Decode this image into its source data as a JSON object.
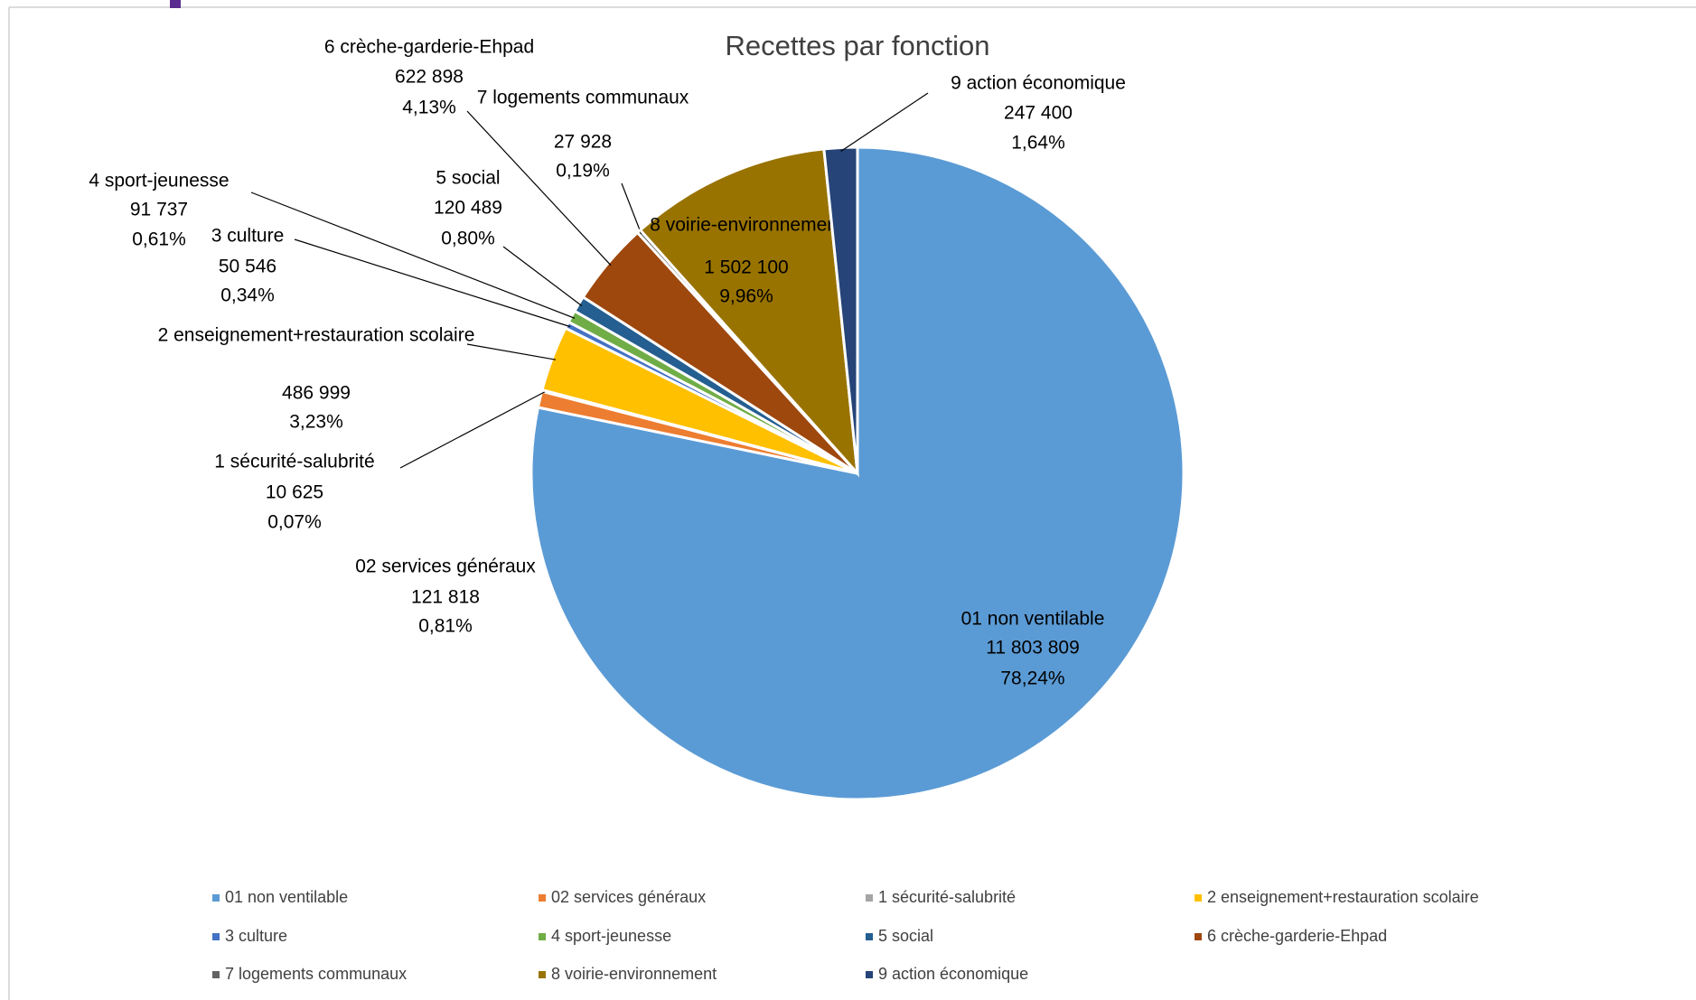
{
  "chart_data": {
    "type": "pie",
    "title": "Recettes par fonction",
    "categories": [
      "01 non ventilable",
      "02 services généraux",
      "1 sécurité-salubrité",
      "2 enseignement+restauration scolaire",
      "3 culture",
      "4 sport-jeunesse",
      "5 social",
      "6 crèche-garderie-Ehpad",
      "7 logements communaux",
      "8 voirie-environnement",
      "9 action économique"
    ],
    "values": [
      11803809,
      121818,
      10625,
      486999,
      50546,
      91737,
      120489,
      622898,
      27928,
      1502100,
      247400
    ],
    "value_labels": [
      "11 803 809",
      "121 818",
      "10 625",
      "486 999",
      "50 546",
      "91 737",
      "120 489",
      "622 898",
      "27 928",
      "1 502 100",
      "247 400"
    ],
    "percentages": [
      78.24,
      0.81,
      0.07,
      3.23,
      0.34,
      0.61,
      0.8,
      4.13,
      0.19,
      9.96,
      1.64
    ],
    "percentage_labels": [
      "78,24%",
      "0,81%",
      "0,07%",
      "3,23%",
      "0,34%",
      "0,61%",
      "0,80%",
      "4,13%",
      "0,19%",
      "9,96%",
      "1,64%"
    ],
    "colors": [
      "#5b9bd5",
      "#ed7d31",
      "#a5a5a5",
      "#ffc000",
      "#4472c4",
      "#70ad47",
      "#255e91",
      "#9e480e",
      "#636363",
      "#997300",
      "#264478"
    ],
    "legend": "bottom"
  }
}
